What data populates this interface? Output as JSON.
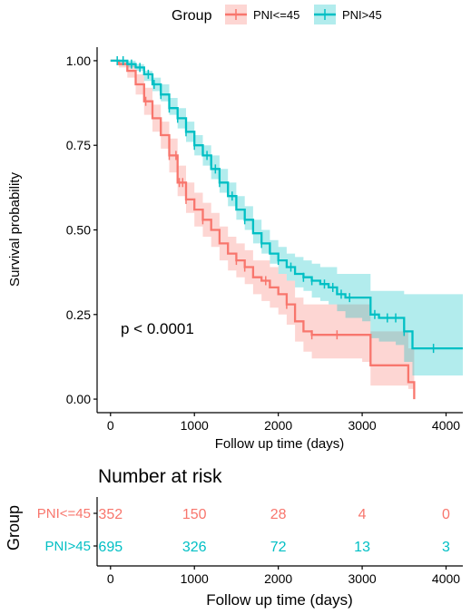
{
  "colors": {
    "low": "#F8766D",
    "high": "#00BFC4",
    "low_band": "#F8766D",
    "high_band": "#00BFC4",
    "axis": "#000000"
  },
  "legend": {
    "title": "Group",
    "items": [
      "PNI<=45",
      "PNI>45"
    ]
  },
  "pvalue": "p < 0.0001",
  "chart_data": [
    {
      "type": "line",
      "subtype": "kaplan-meier",
      "title": "",
      "xlabel": "Follow up time (days)",
      "ylabel": "Survival probability",
      "xlim": [
        -160,
        4200
      ],
      "ylim": [
        -0.04,
        1.04
      ],
      "xticks": [
        0,
        1000,
        2000,
        3000,
        4000
      ],
      "xtick_labels": [
        "0",
        "1000",
        "2000",
        "3000",
        "4000"
      ],
      "yticks": [
        0,
        0.25,
        0.5,
        0.75,
        1
      ],
      "ytick_labels": [
        "0.00",
        "0.25",
        "0.50",
        "0.75",
        "1.00"
      ],
      "grid": false,
      "legend_position": "top",
      "series": [
        {
          "name": "PNI<=45",
          "x": [
            0,
            100,
            200,
            300,
            400,
            500,
            600,
            700,
            800,
            900,
            1000,
            1100,
            1200,
            1300,
            1400,
            1500,
            1600,
            1700,
            1800,
            1900,
            2000,
            2100,
            2200,
            2300,
            2400,
            2600,
            2800,
            3000,
            3100,
            3200,
            3400,
            3550,
            3620
          ],
          "y": [
            1.0,
            0.99,
            0.97,
            0.93,
            0.88,
            0.83,
            0.78,
            0.72,
            0.64,
            0.59,
            0.56,
            0.53,
            0.5,
            0.46,
            0.43,
            0.41,
            0.39,
            0.36,
            0.35,
            0.33,
            0.31,
            0.28,
            0.23,
            0.2,
            0.19,
            0.19,
            0.19,
            0.19,
            0.1,
            0.1,
            0.1,
            0.05,
            0.0
          ],
          "lower": [
            1.0,
            0.98,
            0.95,
            0.9,
            0.84,
            0.79,
            0.74,
            0.67,
            0.6,
            0.55,
            0.51,
            0.48,
            0.45,
            0.41,
            0.38,
            0.36,
            0.34,
            0.31,
            0.29,
            0.27,
            0.25,
            0.22,
            0.17,
            0.14,
            0.12,
            0.12,
            0.12,
            0.11,
            0.04,
            0.04,
            0.04,
            0.03,
            0.03
          ],
          "upper": [
            1.0,
            1.0,
            0.99,
            0.96,
            0.92,
            0.87,
            0.82,
            0.77,
            0.69,
            0.64,
            0.61,
            0.58,
            0.55,
            0.51,
            0.48,
            0.46,
            0.44,
            0.41,
            0.41,
            0.39,
            0.37,
            0.35,
            0.3,
            0.28,
            0.28,
            0.28,
            0.28,
            0.28,
            0.2,
            0.2,
            0.2,
            0.15,
            0.15
          ],
          "censor_x": [
            420,
            700,
            780,
            820,
            860,
            900,
            1100,
            1500,
            1600,
            1850,
            2100,
            2400,
            2700
          ]
        },
        {
          "name": "PNI>45",
          "x": [
            0,
            100,
            200,
            300,
            400,
            500,
            600,
            700,
            800,
            900,
            1000,
            1100,
            1200,
            1300,
            1400,
            1500,
            1600,
            1700,
            1800,
            1900,
            2000,
            2100,
            2200,
            2300,
            2400,
            2500,
            2600,
            2700,
            2800,
            2900,
            3000,
            3100,
            3200,
            3400,
            3500,
            3600,
            4000,
            4200
          ],
          "y": [
            1.0,
            1.0,
            0.99,
            0.98,
            0.96,
            0.93,
            0.9,
            0.86,
            0.83,
            0.79,
            0.75,
            0.72,
            0.68,
            0.64,
            0.6,
            0.56,
            0.53,
            0.49,
            0.46,
            0.43,
            0.41,
            0.39,
            0.37,
            0.36,
            0.35,
            0.34,
            0.33,
            0.31,
            0.3,
            0.3,
            0.3,
            0.25,
            0.24,
            0.24,
            0.2,
            0.15,
            0.15,
            0.15
          ],
          "lower": [
            1.0,
            0.99,
            0.98,
            0.97,
            0.94,
            0.91,
            0.88,
            0.84,
            0.8,
            0.76,
            0.72,
            0.69,
            0.65,
            0.61,
            0.57,
            0.53,
            0.5,
            0.46,
            0.43,
            0.4,
            0.37,
            0.35,
            0.33,
            0.32,
            0.3,
            0.29,
            0.28,
            0.26,
            0.24,
            0.24,
            0.23,
            0.18,
            0.17,
            0.16,
            0.11,
            0.07,
            0.07,
            0.07
          ],
          "upper": [
            1.0,
            1.0,
            1.0,
            0.99,
            0.97,
            0.95,
            0.93,
            0.89,
            0.86,
            0.82,
            0.78,
            0.75,
            0.72,
            0.68,
            0.64,
            0.6,
            0.57,
            0.53,
            0.5,
            0.47,
            0.45,
            0.43,
            0.42,
            0.41,
            0.4,
            0.39,
            0.39,
            0.37,
            0.37,
            0.37,
            0.37,
            0.32,
            0.32,
            0.32,
            0.31,
            0.31,
            0.31,
            0.31
          ],
          "censor_x": [
            80,
            150,
            250,
            350,
            450,
            520,
            600,
            700,
            800,
            900,
            1000,
            1150,
            1250,
            1300,
            1450,
            1600,
            1800,
            2000,
            2150,
            2300,
            2400,
            2550,
            2650,
            2750,
            2850,
            3150,
            3300,
            3400,
            3500,
            3850
          ]
        }
      ]
    },
    {
      "type": "table",
      "title": "Number at risk",
      "xlabel": "Follow up time (days)",
      "ylabel": "Group",
      "xlim": [
        -160,
        4200
      ],
      "xticks": [
        0,
        1000,
        2000,
        3000,
        4000
      ],
      "xtick_labels": [
        "0",
        "1000",
        "2000",
        "3000",
        "4000"
      ],
      "rows": [
        {
          "name": "PNI<=45",
          "values": [
            352,
            150,
            28,
            4,
            0
          ]
        },
        {
          "name": "PNI>45",
          "values": [
            695,
            326,
            72,
            13,
            3
          ]
        }
      ]
    }
  ]
}
